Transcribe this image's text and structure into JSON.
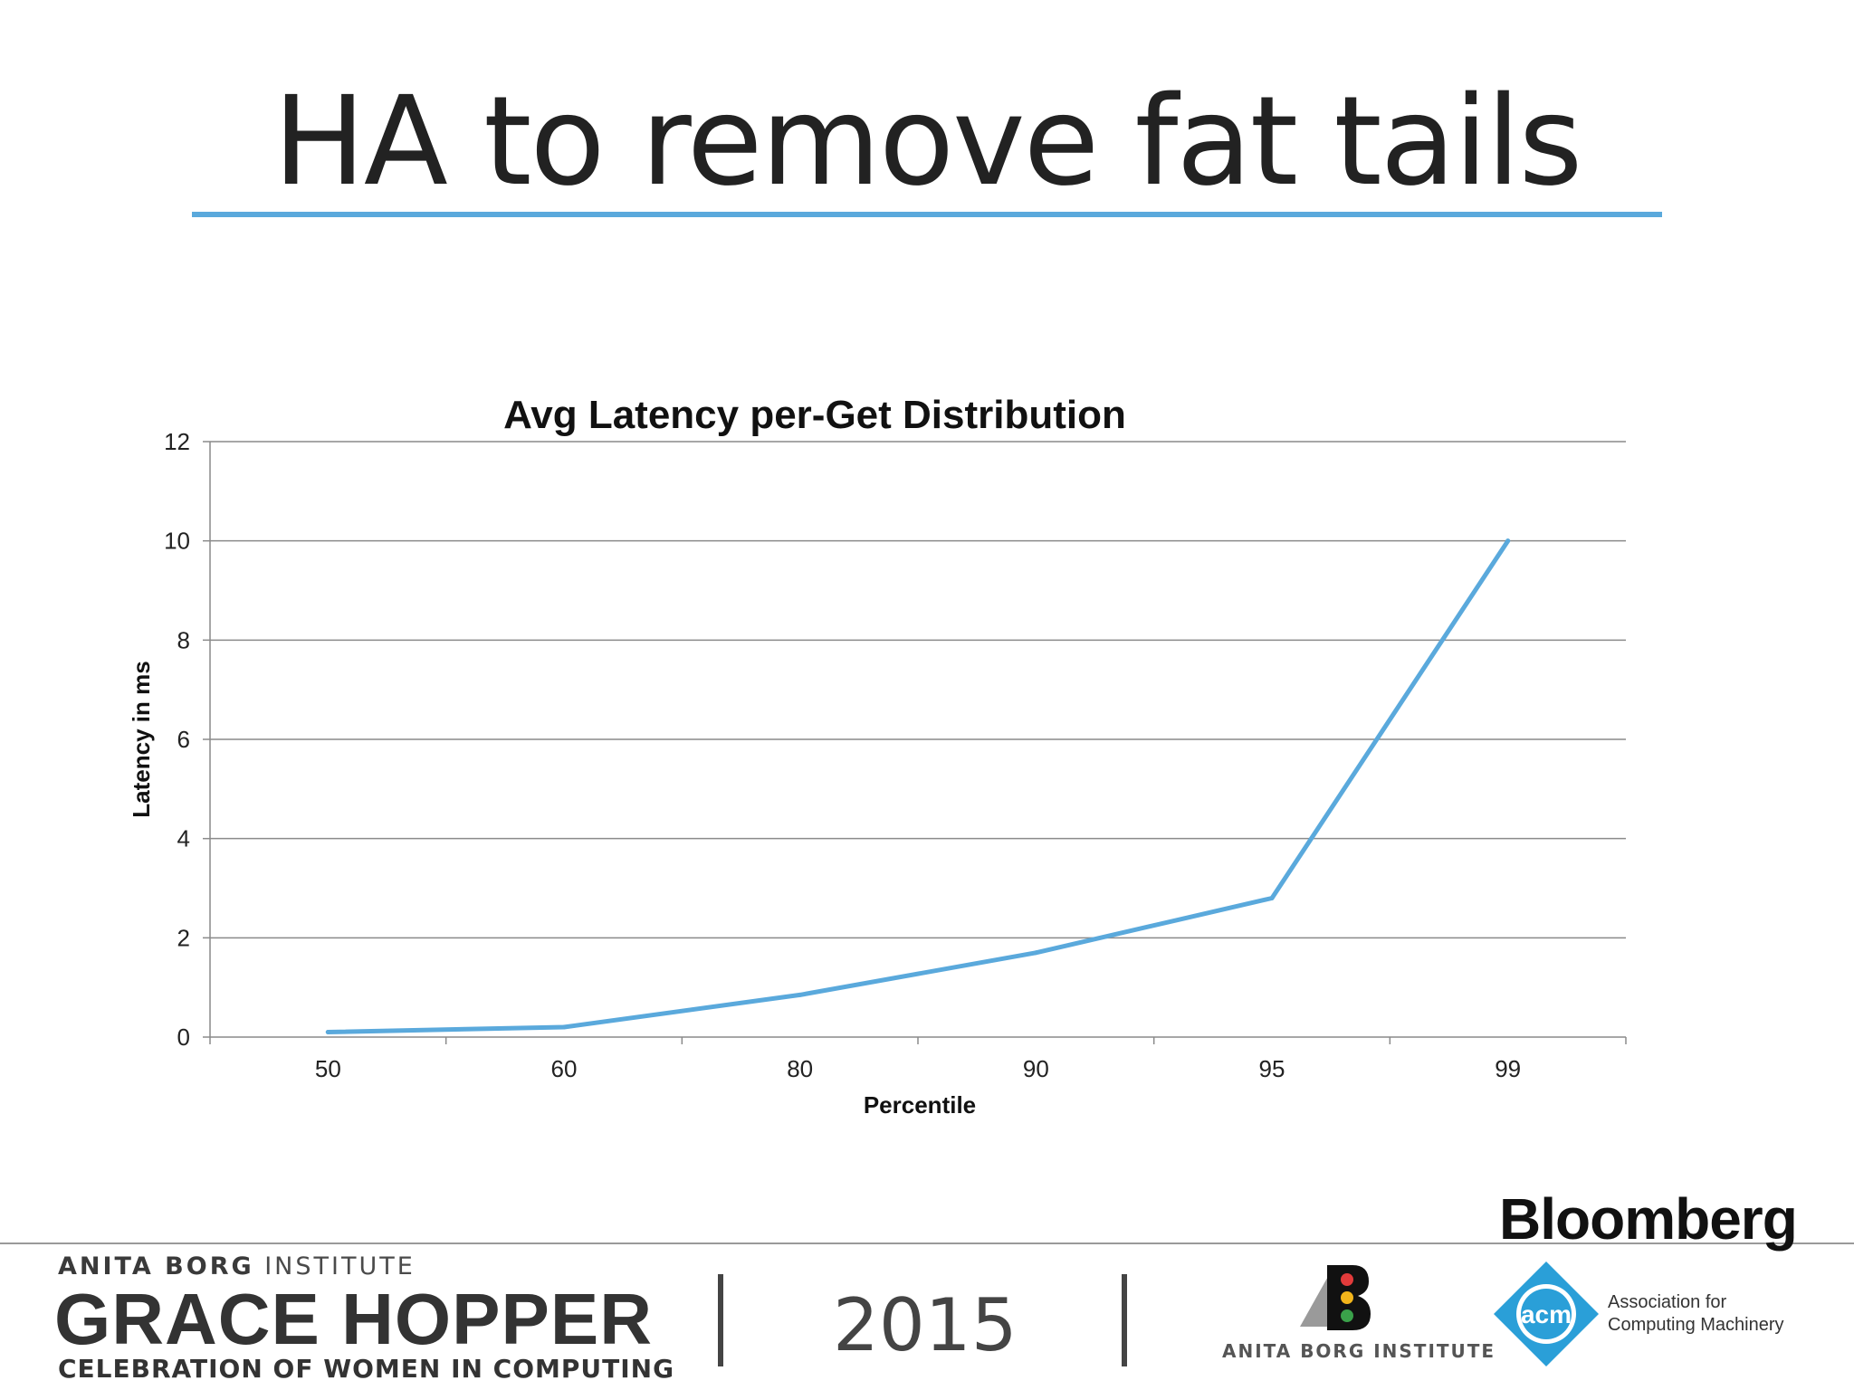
{
  "slide": {
    "title": "HA to remove fat tails"
  },
  "chart_data": {
    "type": "line",
    "title": "Avg Latency per-Get Distribution",
    "xlabel": "Percentile",
    "ylabel": "Latency in ms",
    "categories": [
      "50",
      "60",
      "80",
      "90",
      "95",
      "99"
    ],
    "series": [
      {
        "values": [
          0.1,
          0.2,
          0.85,
          1.7,
          2.8,
          10.0
        ]
      }
    ],
    "ylim": [
      0,
      12
    ],
    "yticks": [
      0,
      2,
      4,
      6,
      8,
      10,
      12
    ],
    "grid": "horizontal",
    "line_color": "#5aa9dc"
  },
  "footer": {
    "abi_bold": "ANITA BORG",
    "abi_rest": " INSTITUTE",
    "grace_hopper": "GRACE HOPPER",
    "celebration": "CELEBRATION OF WOMEN IN COMPUTING",
    "year": "2015",
    "abi_logo_text": "ANITA BORG INSTITUTE",
    "bloomberg": "Bloomberg",
    "acm_badge": "acm",
    "acm_line1": "Association for",
    "acm_line2": "Computing Machinery"
  }
}
